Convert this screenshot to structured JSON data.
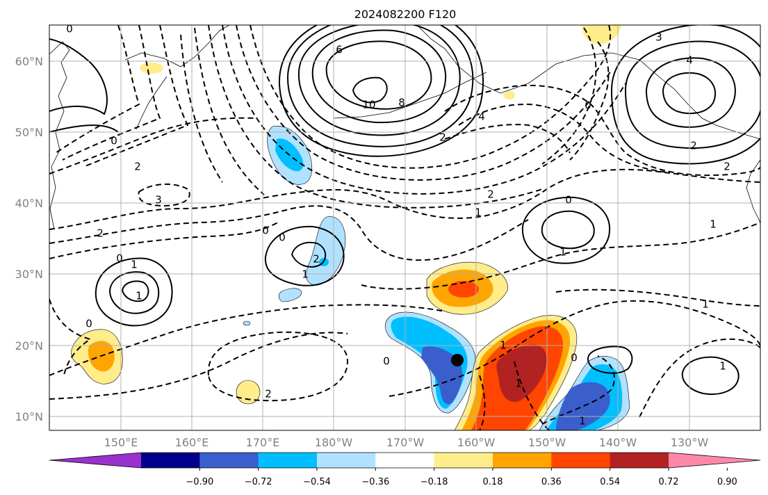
{
  "title": "2024082200 F120",
  "latitude_labels": [
    "60°N",
    "50°N",
    "40°N",
    "30°N",
    "20°N",
    "10°N"
  ],
  "longitude_labels": [
    "150°E",
    "160°E",
    "170°E",
    "180°W",
    "170°W",
    "160°W",
    "150°W",
    "140°W",
    "130°W"
  ],
  "colorbar": {
    "tick_labels": [
      "−0.90",
      "−0.72",
      "−0.54",
      "−0.36",
      "−0.18",
      "0.18",
      "0.36",
      "0.54",
      "0.72",
      "0.90"
    ],
    "colors": [
      "#9932cc",
      "#00008b",
      "#3a5fcd",
      "#00bfff",
      "#b0e2ff",
      "#ffffff",
      "#ffec8b",
      "#ffa500",
      "#ff4500",
      "#b22222",
      "#ff88aa"
    ]
  },
  "contour_labels": [
    "0",
    "6",
    "10",
    "8",
    "4",
    "2",
    "3",
    "4",
    "0",
    "2",
    "0",
    "2",
    "3",
    "2",
    "0",
    "0",
    "1",
    "0",
    "1",
    "2",
    "1",
    "2",
    "1",
    "1",
    "0",
    "1",
    "0",
    "1",
    "0",
    "1",
    "1",
    "0",
    "1",
    "1",
    "2",
    "2"
  ],
  "marker": {
    "lon": -162.6,
    "lat": 17.8,
    "color": "#000000"
  }
}
